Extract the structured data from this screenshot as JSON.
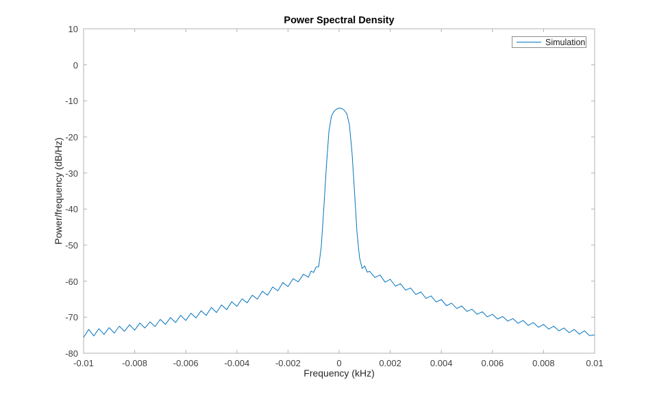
{
  "figure": {
    "background": "#ffffff"
  },
  "chart_data": {
    "type": "line",
    "title": "Power Spectral Density",
    "xlabel": "Frequency (kHz)",
    "ylabel": "Power/frequency (dB/Hz)",
    "xlim": [
      -0.01,
      0.01
    ],
    "ylim": [
      -80,
      10
    ],
    "grid": false,
    "axis_color": "#b0b0b0",
    "tick_label_color": "#404040",
    "xticks": {
      "values": [
        -0.01,
        -0.008,
        -0.006,
        -0.004,
        -0.002,
        0,
        0.002,
        0.004,
        0.006,
        0.008,
        0.01
      ],
      "labels": [
        "-0.01",
        "-0.008",
        "-0.006",
        "-0.004",
        "-0.002",
        "0",
        "0.002",
        "0.004",
        "0.006",
        "0.008",
        "0.01"
      ]
    },
    "yticks": {
      "values": [
        -80,
        -70,
        -60,
        -50,
        -40,
        -30,
        -20,
        -10,
        0,
        10
      ],
      "labels": [
        "-80",
        "-70",
        "-60",
        "-50",
        "-40",
        "-30",
        "-20",
        "-10",
        "0",
        "10"
      ]
    },
    "legend": {
      "position": "top-right",
      "entries": [
        {
          "label": "Simulation",
          "color": "#0072BD"
        }
      ]
    },
    "series": [
      {
        "name": "Simulation",
        "color": "#0072BD",
        "points": [
          [
            -0.01,
            -75.6
          ],
          [
            -0.0098,
            -73.4
          ],
          [
            -0.0096,
            -75.2
          ],
          [
            -0.0094,
            -73.2
          ],
          [
            -0.0092,
            -74.8
          ],
          [
            -0.009,
            -72.9
          ],
          [
            -0.0088,
            -74.4
          ],
          [
            -0.0086,
            -72.5
          ],
          [
            -0.0084,
            -73.9
          ],
          [
            -0.0082,
            -72.1
          ],
          [
            -0.008,
            -73.6
          ],
          [
            -0.0078,
            -71.6
          ],
          [
            -0.0076,
            -73.0
          ],
          [
            -0.0074,
            -71.3
          ],
          [
            -0.0072,
            -72.6
          ],
          [
            -0.007,
            -70.6
          ],
          [
            -0.0068,
            -72.0
          ],
          [
            -0.0066,
            -70.1
          ],
          [
            -0.0064,
            -71.5
          ],
          [
            -0.0062,
            -69.5
          ],
          [
            -0.006,
            -70.9
          ],
          [
            -0.0058,
            -68.9
          ],
          [
            -0.0056,
            -70.2
          ],
          [
            -0.0054,
            -68.2
          ],
          [
            -0.0052,
            -69.5
          ],
          [
            -0.005,
            -67.3
          ],
          [
            -0.0048,
            -68.7
          ],
          [
            -0.0046,
            -66.6
          ],
          [
            -0.0044,
            -67.9
          ],
          [
            -0.0042,
            -65.7
          ],
          [
            -0.004,
            -67.0
          ],
          [
            -0.0038,
            -64.9
          ],
          [
            -0.0036,
            -66.0
          ],
          [
            -0.0034,
            -63.9
          ],
          [
            -0.0032,
            -65.0
          ],
          [
            -0.003,
            -62.8
          ],
          [
            -0.0028,
            -63.9
          ],
          [
            -0.0026,
            -61.6
          ],
          [
            -0.0024,
            -62.7
          ],
          [
            -0.0022,
            -60.4
          ],
          [
            -0.002,
            -61.5
          ],
          [
            -0.0018,
            -59.3
          ],
          [
            -0.0016,
            -60.2
          ],
          [
            -0.0014,
            -58.1
          ],
          [
            -0.0012,
            -58.9
          ],
          [
            -0.0011,
            -57.2
          ],
          [
            -0.001,
            -57.6
          ],
          [
            -0.0009,
            -56.1
          ],
          [
            -0.0008,
            -56.0
          ],
          [
            -0.0007,
            -50.5
          ],
          [
            -0.0006,
            -40.0
          ],
          [
            -0.0005,
            -28.5
          ],
          [
            -0.0004,
            -18.5
          ],
          [
            -0.0003,
            -14.2
          ],
          [
            -0.0002,
            -12.9
          ],
          [
            -0.0001,
            -12.3
          ],
          [
            0.0,
            -12.0
          ],
          [
            0.0001,
            -12.1
          ],
          [
            0.0002,
            -12.6
          ],
          [
            0.0003,
            -13.6
          ],
          [
            0.0004,
            -16.5
          ],
          [
            0.0005,
            -24.0
          ],
          [
            0.0006,
            -35.0
          ],
          [
            0.0007,
            -46.5
          ],
          [
            0.0008,
            -53.5
          ],
          [
            0.0009,
            -56.5
          ],
          [
            0.001,
            -55.8
          ],
          [
            0.0011,
            -57.5
          ],
          [
            0.0012,
            -57.3
          ],
          [
            0.0014,
            -59.0
          ],
          [
            0.0016,
            -58.3
          ],
          [
            0.0018,
            -60.3
          ],
          [
            0.002,
            -59.5
          ],
          [
            0.0022,
            -61.4
          ],
          [
            0.0024,
            -60.7
          ],
          [
            0.0026,
            -62.5
          ],
          [
            0.0028,
            -61.9
          ],
          [
            0.003,
            -63.7
          ],
          [
            0.0032,
            -63.0
          ],
          [
            0.0034,
            -64.8
          ],
          [
            0.0036,
            -64.1
          ],
          [
            0.0038,
            -65.8
          ],
          [
            0.004,
            -65.1
          ],
          [
            0.0042,
            -66.8
          ],
          [
            0.0044,
            -66.1
          ],
          [
            0.0046,
            -67.6
          ],
          [
            0.0048,
            -66.9
          ],
          [
            0.005,
            -68.4
          ],
          [
            0.0052,
            -67.8
          ],
          [
            0.0054,
            -69.2
          ],
          [
            0.0056,
            -68.5
          ],
          [
            0.0058,
            -69.9
          ],
          [
            0.006,
            -69.2
          ],
          [
            0.0062,
            -70.5
          ],
          [
            0.0064,
            -69.8
          ],
          [
            0.0066,
            -71.1
          ],
          [
            0.0068,
            -70.4
          ],
          [
            0.007,
            -71.7
          ],
          [
            0.0072,
            -70.9
          ],
          [
            0.0074,
            -72.3
          ],
          [
            0.0076,
            -71.5
          ],
          [
            0.0078,
            -72.8
          ],
          [
            0.008,
            -72.0
          ],
          [
            0.0082,
            -73.3
          ],
          [
            0.0084,
            -72.5
          ],
          [
            0.0086,
            -73.8
          ],
          [
            0.0088,
            -73.0
          ],
          [
            0.009,
            -74.3
          ],
          [
            0.0092,
            -73.4
          ],
          [
            0.0094,
            -74.7
          ],
          [
            0.0096,
            -73.8
          ],
          [
            0.0098,
            -75.1
          ],
          [
            0.01,
            -74.9
          ]
        ]
      }
    ]
  }
}
